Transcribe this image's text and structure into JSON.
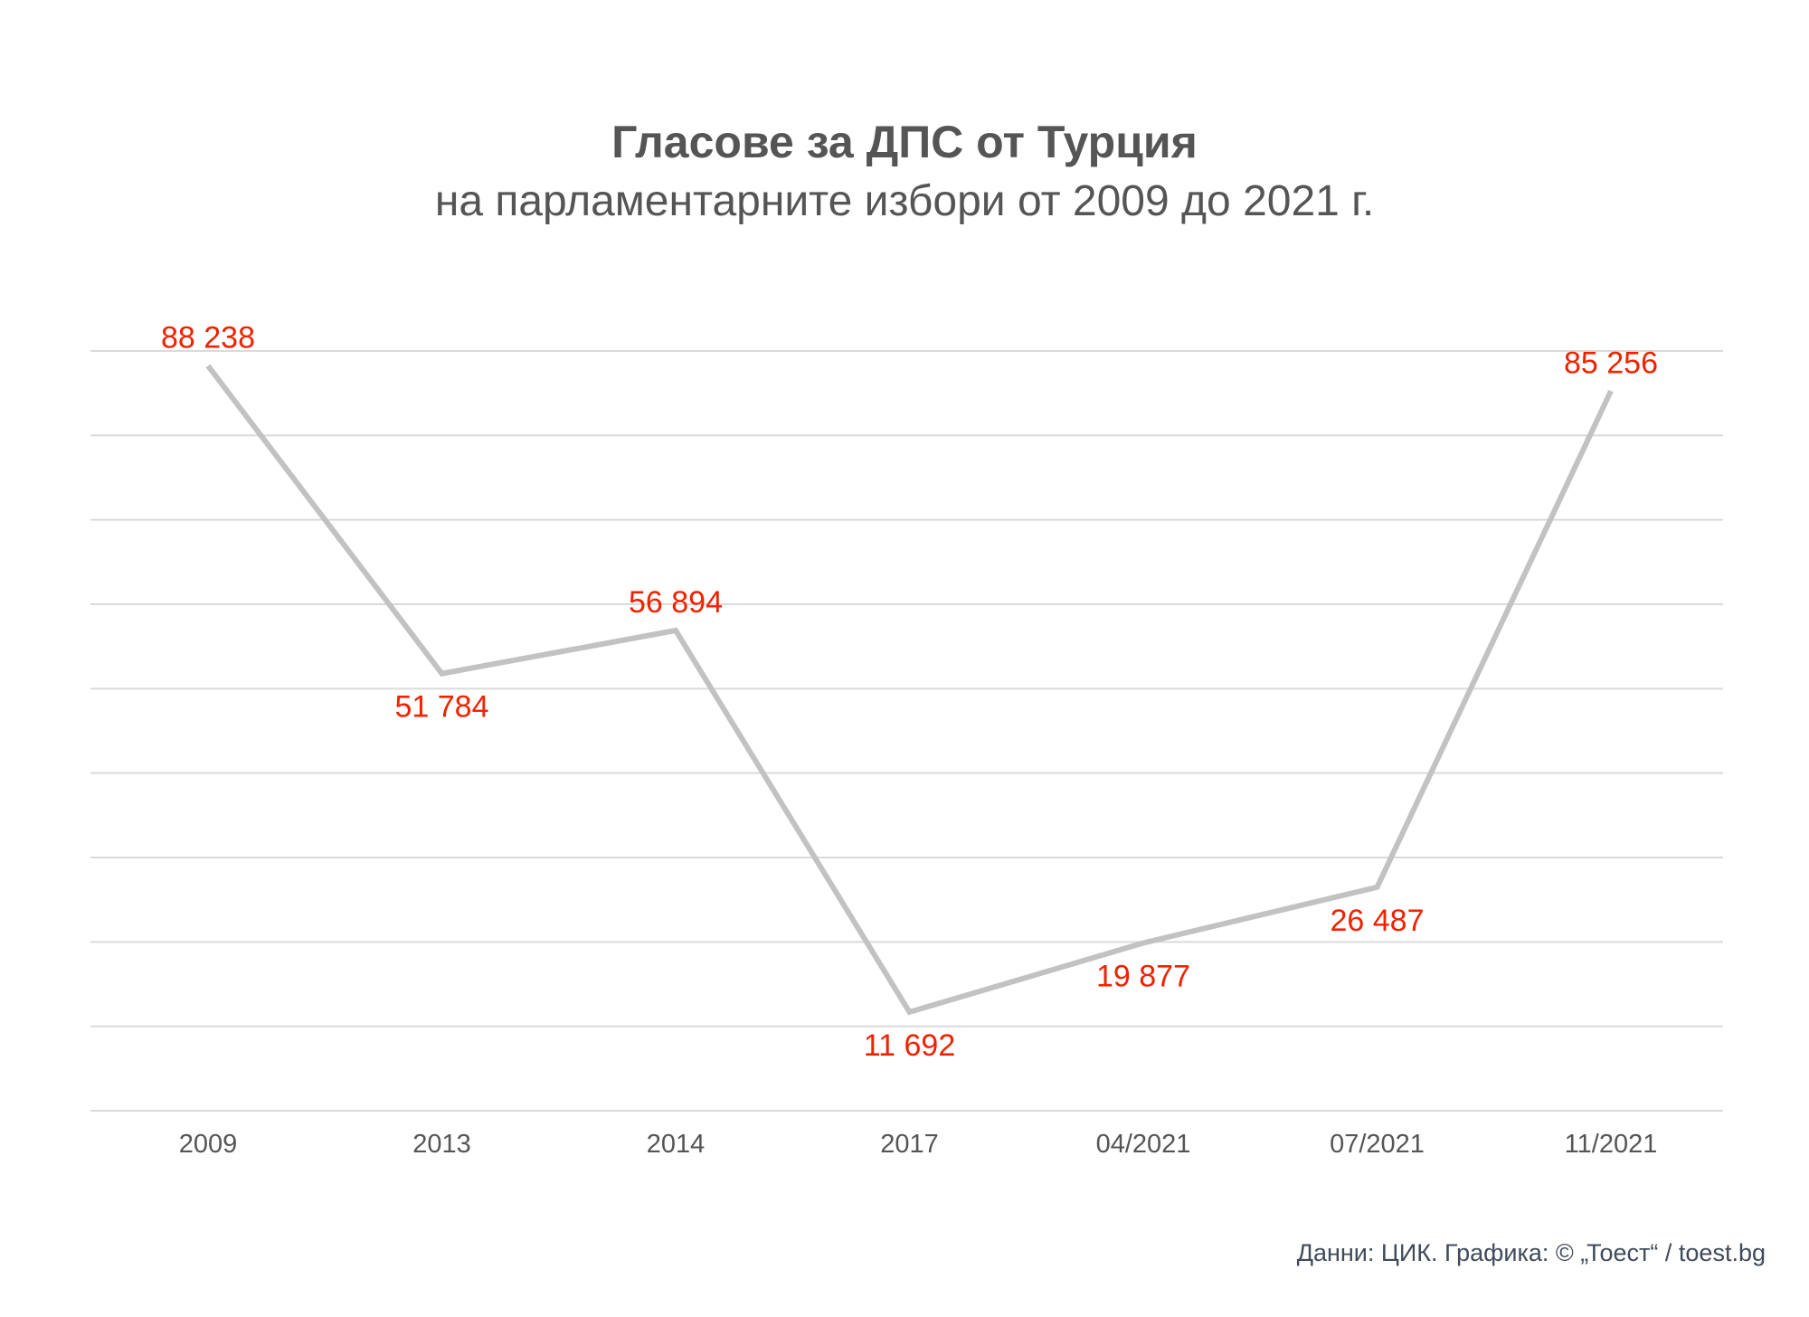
{
  "chart_data": {
    "type": "line",
    "title": "Гласове за ДПС от Турция",
    "subtitle": "на парламентарните избори от 2009 до 2021 г.",
    "categories": [
      "2009",
      "2013",
      "2014",
      "2017",
      "04/2021",
      "07/2021",
      "11/2021"
    ],
    "values": [
      88238,
      51784,
      56894,
      11692,
      19877,
      26487,
      85256
    ],
    "value_labels": [
      "88 238",
      "51 784",
      "56 894",
      "11 692",
      "19 877",
      "26 487",
      "85 256"
    ],
    "xlabel": "",
    "ylabel": "",
    "ylim": [
      0,
      90000
    ],
    "grid": true,
    "y_tick_labels_shown": false,
    "legend": "none"
  },
  "colors": {
    "line": "#c2c2c2",
    "labels": "#f02200",
    "grid": "#dadada",
    "axis_text": "#555555",
    "title": "#555555",
    "credit": "#3f4a5a"
  },
  "credit": "Данни: ЦИК. Графика: © „Тоест“ / toest.bg"
}
